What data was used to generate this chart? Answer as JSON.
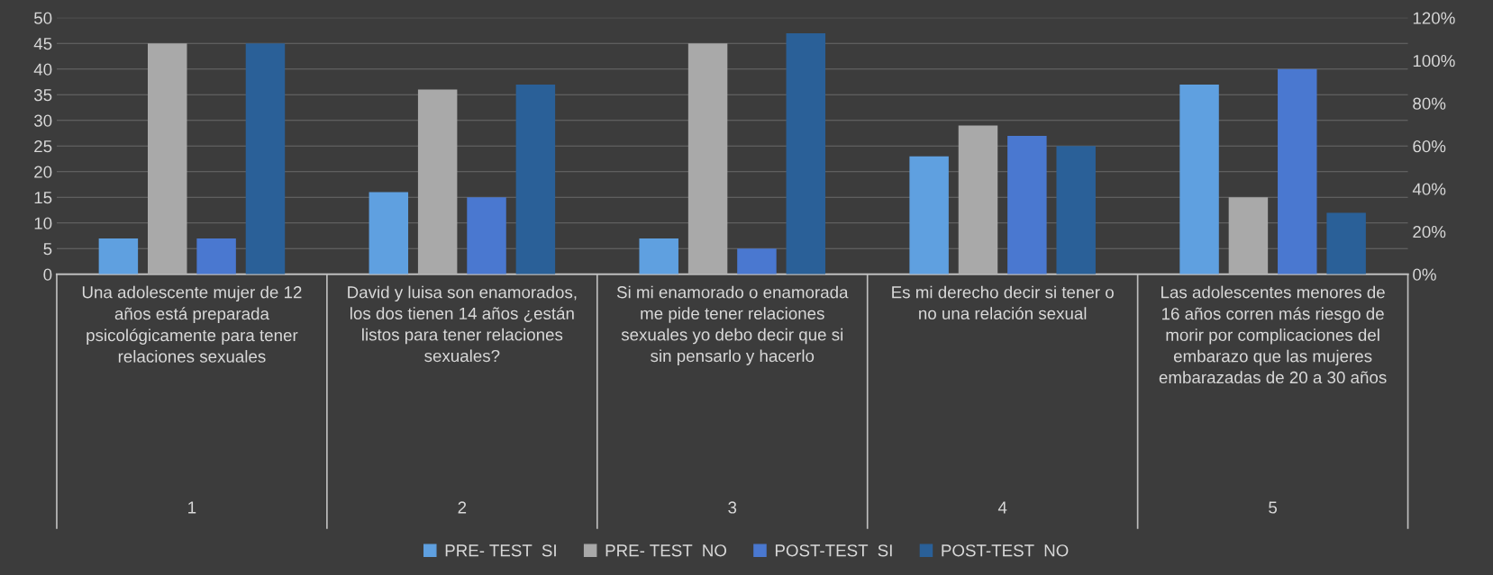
{
  "chart_data": {
    "type": "bar",
    "categories": [
      "Una adolescente mujer de 12 años está preparada psicológicamente para tener relaciones sexuales",
      "David y luisa son enamorados, los dos tienen 14 años ¿están listos para tener relaciones sexuales?",
      "Si mi enamorado o enamorada me pide tener relaciones sexuales yo debo decir que si sin pensarlo y hacerlo",
      "Es mi derecho decir si tener o no una relación sexual",
      "Las adolescentes menores de 16 años corren más riesgo de morir por complicaciones del embarazo que las mujeres embarazadas de 20 a 30 años"
    ],
    "series": [
      {
        "name": "PRE- TEST  SI",
        "color": "#5fa0e0",
        "values": [
          7,
          16,
          7,
          23,
          37
        ]
      },
      {
        "name": "PRE- TEST  NO",
        "color": "#a9a9a9",
        "values": [
          45,
          36,
          45,
          29,
          15
        ]
      },
      {
        "name": "POST-TEST  SI",
        "color": "#4a78d0",
        "values": [
          7,
          15,
          5,
          27,
          40
        ]
      },
      {
        "name": "POST-TEST  NO",
        "color": "#2a6098",
        "values": [
          45,
          37,
          47,
          25,
          12
        ]
      }
    ],
    "annotations": [
      "1",
      "2",
      "3",
      "4",
      "5"
    ],
    "ylim": [
      0,
      50
    ],
    "yticks": [
      0,
      5,
      10,
      15,
      20,
      25,
      30,
      35,
      40,
      45,
      50
    ],
    "y2lim": [
      0,
      120
    ],
    "y2ticks": [
      {
        "value": 0,
        "label": "0%"
      },
      {
        "value": 20,
        "label": "20%"
      },
      {
        "value": 40,
        "label": "40%"
      },
      {
        "value": 60,
        "label": "60%"
      },
      {
        "value": 80,
        "label": "80%"
      },
      {
        "value": 100,
        "label": "100%"
      },
      {
        "value": 120,
        "label": "120%"
      }
    ],
    "grid": "y",
    "legend": "bottom"
  }
}
